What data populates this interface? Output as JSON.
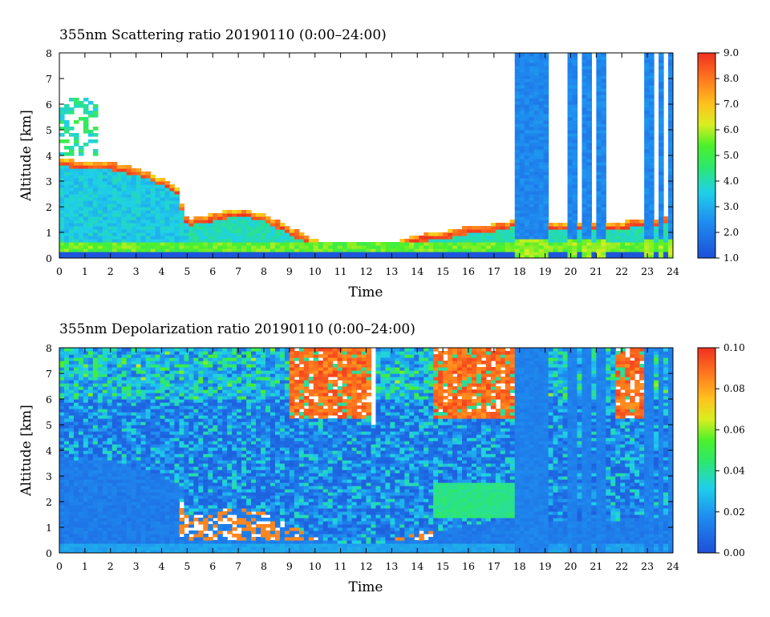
{
  "chart_data": [
    {
      "type": "heatmap",
      "title": "355nm Scattering ratio  20190110 (0:00–24:00)",
      "xlabel": "Time",
      "ylabel": "Altitude [km]",
      "xlim": [
        0,
        24
      ],
      "ylim": [
        0,
        8
      ],
      "x_ticks": [
        "0",
        "1",
        "2",
        "3",
        "4",
        "5",
        "6",
        "7",
        "8",
        "9",
        "10",
        "11",
        "12",
        "13",
        "14",
        "15",
        "16",
        "17",
        "18",
        "19",
        "20",
        "21",
        "22",
        "23",
        "24"
      ],
      "y_ticks": [
        "0",
        "1",
        "2",
        "3",
        "4",
        "5",
        "6",
        "7",
        "8"
      ],
      "colorbar": {
        "min": 1.0,
        "max": 9.0,
        "ticks": [
          "1.0",
          "2.0",
          "3.0",
          "4.0",
          "5.0",
          "6.0",
          "7.0",
          "8.0",
          "9.0"
        ],
        "colormap": "rainbow (blue to red)"
      },
      "features": {
        "boundary_layer_top_km": [
          [
            0,
            3.8
          ],
          [
            1,
            3.6
          ],
          [
            2,
            3.6
          ],
          [
            3,
            3.4
          ],
          [
            4,
            3.0
          ],
          [
            4.6,
            2.6
          ],
          [
            5,
            1.4
          ],
          [
            6,
            1.6
          ],
          [
            7,
            1.8
          ],
          [
            8,
            1.6
          ],
          [
            9,
            1.1
          ],
          [
            10,
            0.6
          ],
          [
            11,
            0.4
          ],
          [
            12,
            0.4
          ],
          [
            12.4,
            0.3
          ],
          [
            13,
            0.5
          ],
          [
            14,
            0.8
          ],
          [
            15,
            0.9
          ],
          [
            16,
            1.1
          ],
          [
            17,
            1.2
          ],
          [
            18,
            1.4
          ],
          [
            20,
            1.2
          ],
          [
            22,
            1.3
          ],
          [
            24,
            1.5
          ]
        ],
        "tall_columns_time_h": [
          [
            17.9,
            19.2
          ],
          [
            19.9,
            20.3
          ],
          [
            20.5,
            20.8
          ],
          [
            21.0,
            21.3
          ],
          [
            22.9,
            23.2
          ],
          [
            23.4,
            23.7
          ],
          [
            23.8,
            24.0
          ]
        ]
      }
    },
    {
      "type": "heatmap",
      "title": "355nm Depolarization ratio  20190110 (0:00–24:00)",
      "xlabel": "Time",
      "ylabel": "Altitude [km]",
      "xlim": [
        0,
        24
      ],
      "ylim": [
        0,
        8
      ],
      "x_ticks": [
        "0",
        "1",
        "2",
        "3",
        "4",
        "5",
        "6",
        "7",
        "8",
        "9",
        "10",
        "11",
        "12",
        "13",
        "14",
        "15",
        "16",
        "17",
        "18",
        "19",
        "20",
        "21",
        "22",
        "23",
        "24"
      ],
      "y_ticks": [
        "0",
        "1",
        "2",
        "3",
        "4",
        "5",
        "6",
        "7",
        "8"
      ],
      "colorbar": {
        "min": 0.0,
        "max": 0.1,
        "ticks": [
          "0.00",
          "0.02",
          "0.04",
          "0.06",
          "0.08",
          "0.10"
        ],
        "colormap": "rainbow (blue to red)"
      },
      "features": {
        "high_depol_aloft_time_h": [
          [
            9,
            12.2
          ],
          [
            14.7,
            17.8
          ],
          [
            21.7,
            23
          ]
        ],
        "green_layer_time_h": [
          [
            14.7,
            17.9
          ]
        ],
        "white_gap_time_h": [
          [
            12.1,
            12.4
          ]
        ]
      }
    }
  ]
}
